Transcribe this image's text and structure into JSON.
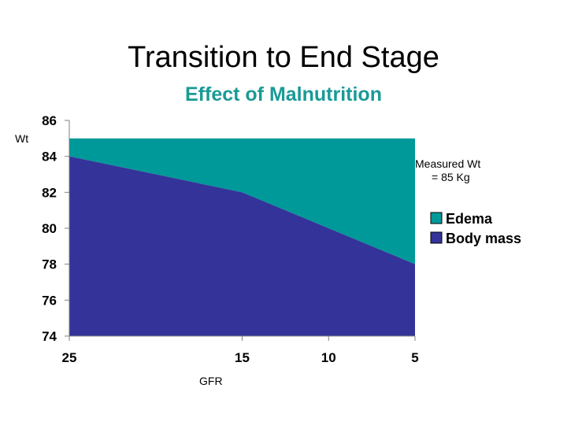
{
  "slide": {
    "title": "Transition to End Stage"
  },
  "chart_data": {
    "type": "area",
    "title": "Effect of Malnutrition",
    "xlabel": "GFR",
    "ylabel": "Wt",
    "x": [
      "25",
      "15",
      "10",
      "5"
    ],
    "xvals": [
      25,
      15,
      10,
      5
    ],
    "ylim": [
      74,
      86
    ],
    "yticks": [
      74,
      76,
      78,
      80,
      82,
      84,
      86
    ],
    "series": [
      {
        "name": "Body mass",
        "values": [
          84,
          82,
          80,
          78
        ],
        "color": "#333399"
      },
      {
        "name": "Edema",
        "values": [
          1,
          3,
          5,
          7
        ],
        "color": "#009999"
      }
    ],
    "annotation": [
      "Measured Wt",
      "= 85 Kg"
    ],
    "legend_position": "right",
    "grid": false
  }
}
